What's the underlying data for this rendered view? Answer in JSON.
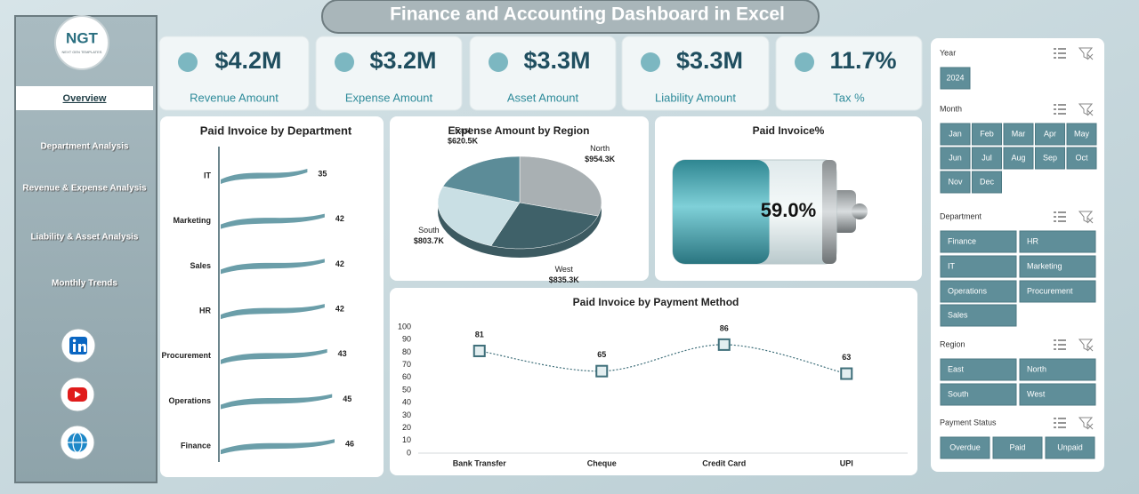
{
  "header": {
    "title": "Finance and Accounting Dashboard in Excel"
  },
  "sidebar": {
    "logo": "NGT",
    "logo_subtitle": "NEXT GEN TEMPLATES",
    "nav": [
      "Overview",
      "Department Analysis",
      "Revenue & Expense Analysis",
      "Liability & Asset Analysis",
      "Monthly Trends"
    ]
  },
  "kpis": [
    {
      "value": "$4.2M",
      "label": "Revenue Amount"
    },
    {
      "value": "$3.2M",
      "label": "Expense Amount"
    },
    {
      "value": "$3.3M",
      "label": "Asset Amount"
    },
    {
      "value": "$3.3M",
      "label": "Liability Amount"
    },
    {
      "value": "11.7%",
      "label": "Tax %"
    }
  ],
  "chart_data": [
    {
      "type": "bar",
      "title": "Paid Invoice by Department",
      "categories": [
        "IT",
        "Marketing",
        "Sales",
        "HR",
        "Procurement",
        "Operations",
        "Finance"
      ],
      "values": [
        35,
        42,
        42,
        42,
        43,
        45,
        46
      ],
      "color": "#6b9ea9"
    },
    {
      "type": "pie",
      "title": "Expense Amount by Region",
      "categories": [
        "North",
        "West",
        "South",
        "East"
      ],
      "values": [
        954.3,
        835.3,
        803.7,
        620.5
      ],
      "value_labels": [
        "$954.3K",
        "$835.3K",
        "$803.7K",
        "$620.5K"
      ],
      "colors": [
        "#a9b0b3",
        "#3f6169",
        "#c9dfe4",
        "#5c8c98"
      ]
    },
    {
      "type": "gauge",
      "title": "Paid Invoice%",
      "value": 59,
      "value_label": "59.0%",
      "ylim": [
        0,
        100
      ],
      "color": "#4aa3ad"
    },
    {
      "type": "line",
      "title": "Paid Invoice by Payment Method",
      "categories": [
        "Bank Transfer",
        "Cheque",
        "Credit Card",
        "UPI"
      ],
      "values": [
        81,
        65,
        86,
        63
      ],
      "color": "#3f6f7a",
      "marker": "square",
      "ylim": [
        0,
        100
      ],
      "yticks": [
        0,
        10,
        20,
        30,
        40,
        50,
        60,
        70,
        80,
        90,
        100
      ]
    }
  ],
  "slicers": [
    {
      "title": "Year",
      "items": [
        "2024"
      ]
    },
    {
      "title": "Month",
      "items": [
        "Jan",
        "Feb",
        "Mar",
        "Apr",
        "May",
        "Jun",
        "Jul",
        "Aug",
        "Sep",
        "Oct",
        "Nov",
        "Dec"
      ]
    },
    {
      "title": "Department",
      "items": [
        "Finance",
        "HR",
        "IT",
        "Marketing",
        "Operations",
        "Procurement",
        "Sales"
      ]
    },
    {
      "title": "Region",
      "items": [
        "East",
        "North",
        "South",
        "West"
      ]
    },
    {
      "title": "Payment Status",
      "items": [
        "Overdue",
        "Paid",
        "Unpaid"
      ]
    }
  ]
}
